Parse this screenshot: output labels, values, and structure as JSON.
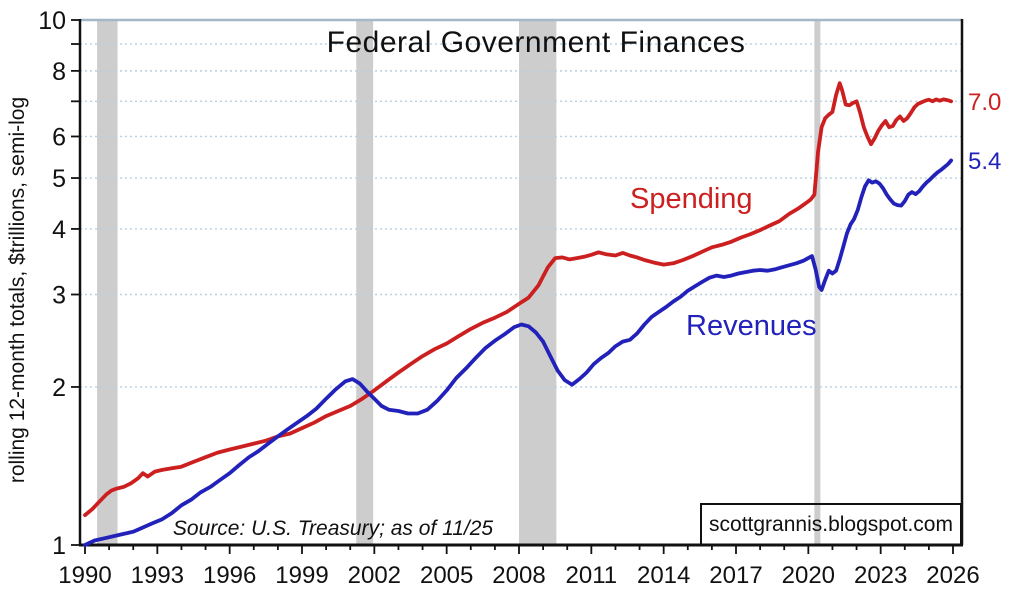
{
  "chart_data": {
    "type": "line",
    "title": "Federal Government Finances",
    "ylabel": "rolling 12-month totals, $trillions, semi-log",
    "source_note": "Source: U.S. Treasury; as of 11/25",
    "watermark": "scottgrannis.blogspot.com",
    "y_scale": "log10",
    "y_range": [
      1,
      10
    ],
    "y_ticks_labeled": [
      1,
      2,
      3,
      4,
      5,
      6,
      8,
      10
    ],
    "y_ticks_minor": [
      7,
      9
    ],
    "gridlines_at": [
      2,
      3,
      4,
      5,
      6,
      7,
      8,
      9
    ],
    "x_range": [
      1990,
      2026
    ],
    "x_ticks_labeled": [
      1990,
      1993,
      1996,
      1999,
      2002,
      2005,
      2008,
      2011,
      2014,
      2017,
      2020,
      2023,
      2026
    ],
    "x_minor_step": 1,
    "legend_position": "inline-labels",
    "grid": "horizontal-dotted",
    "recession_bands": [
      [
        1990.5,
        1991.35
      ],
      [
        2001.25,
        2001.95
      ],
      [
        2008.0,
        2009.55
      ],
      [
        2020.25,
        2020.5
      ]
    ],
    "palette": {
      "recession_band": "#cdcdcd",
      "gridline": "#b8d0e2",
      "frame_top": "#a3b8c8",
      "axis": "#111111"
    },
    "series": [
      {
        "name": "Spending",
        "color": "#cc2020",
        "end_label": "7.0",
        "points": [
          [
            1990.0,
            1.14
          ],
          [
            1990.3,
            1.17
          ],
          [
            1990.6,
            1.21
          ],
          [
            1990.9,
            1.25
          ],
          [
            1991.1,
            1.27
          ],
          [
            1991.3,
            1.28
          ],
          [
            1991.6,
            1.29
          ],
          [
            1991.9,
            1.31
          ],
          [
            1992.2,
            1.34
          ],
          [
            1992.4,
            1.37
          ],
          [
            1992.6,
            1.35
          ],
          [
            1992.9,
            1.38
          ],
          [
            1993.2,
            1.39
          ],
          [
            1993.6,
            1.4
          ],
          [
            1994.0,
            1.41
          ],
          [
            1994.5,
            1.44
          ],
          [
            1995.0,
            1.47
          ],
          [
            1995.5,
            1.5
          ],
          [
            1996.0,
            1.52
          ],
          [
            1996.5,
            1.54
          ],
          [
            1997.0,
            1.56
          ],
          [
            1997.5,
            1.58
          ],
          [
            1998.0,
            1.61
          ],
          [
            1998.5,
            1.63
          ],
          [
            1999.0,
            1.67
          ],
          [
            1999.5,
            1.71
          ],
          [
            2000.0,
            1.76
          ],
          [
            2000.5,
            1.8
          ],
          [
            2001.0,
            1.84
          ],
          [
            2001.5,
            1.9
          ],
          [
            2002.0,
            1.97
          ],
          [
            2002.5,
            2.05
          ],
          [
            2003.0,
            2.13
          ],
          [
            2003.5,
            2.21
          ],
          [
            2004.0,
            2.29
          ],
          [
            2004.5,
            2.36
          ],
          [
            2005.0,
            2.42
          ],
          [
            2005.5,
            2.5
          ],
          [
            2006.0,
            2.58
          ],
          [
            2006.5,
            2.65
          ],
          [
            2007.0,
            2.71
          ],
          [
            2007.5,
            2.78
          ],
          [
            2008.0,
            2.88
          ],
          [
            2008.4,
            2.96
          ],
          [
            2008.8,
            3.12
          ],
          [
            2009.2,
            3.38
          ],
          [
            2009.5,
            3.52
          ],
          [
            2009.8,
            3.53
          ],
          [
            2010.1,
            3.5
          ],
          [
            2010.4,
            3.52
          ],
          [
            2010.7,
            3.54
          ],
          [
            2011.0,
            3.57
          ],
          [
            2011.3,
            3.61
          ],
          [
            2011.6,
            3.58
          ],
          [
            2012.0,
            3.56
          ],
          [
            2012.3,
            3.6
          ],
          [
            2012.6,
            3.56
          ],
          [
            2012.9,
            3.53
          ],
          [
            2013.2,
            3.49
          ],
          [
            2013.6,
            3.45
          ],
          [
            2014.0,
            3.42
          ],
          [
            2014.4,
            3.44
          ],
          [
            2014.8,
            3.49
          ],
          [
            2015.2,
            3.55
          ],
          [
            2015.6,
            3.62
          ],
          [
            2016.0,
            3.69
          ],
          [
            2016.4,
            3.73
          ],
          [
            2016.8,
            3.78
          ],
          [
            2017.2,
            3.85
          ],
          [
            2017.6,
            3.91
          ],
          [
            2018.0,
            3.98
          ],
          [
            2018.4,
            4.06
          ],
          [
            2018.8,
            4.14
          ],
          [
            2019.2,
            4.27
          ],
          [
            2019.6,
            4.38
          ],
          [
            2019.9,
            4.48
          ],
          [
            2020.1,
            4.55
          ],
          [
            2020.25,
            4.65
          ],
          [
            2020.4,
            5.6
          ],
          [
            2020.55,
            6.25
          ],
          [
            2020.7,
            6.5
          ],
          [
            2020.85,
            6.6
          ],
          [
            2021.0,
            6.68
          ],
          [
            2021.15,
            7.2
          ],
          [
            2021.3,
            7.58
          ],
          [
            2021.4,
            7.35
          ],
          [
            2021.55,
            6.9
          ],
          [
            2021.7,
            6.88
          ],
          [
            2021.85,
            6.95
          ],
          [
            2022.0,
            7.0
          ],
          [
            2022.15,
            6.65
          ],
          [
            2022.3,
            6.25
          ],
          [
            2022.45,
            6.0
          ],
          [
            2022.6,
            5.8
          ],
          [
            2022.75,
            5.95
          ],
          [
            2022.9,
            6.15
          ],
          [
            2023.05,
            6.3
          ],
          [
            2023.2,
            6.42
          ],
          [
            2023.35,
            6.25
          ],
          [
            2023.5,
            6.28
          ],
          [
            2023.65,
            6.45
          ],
          [
            2023.8,
            6.55
          ],
          [
            2023.95,
            6.42
          ],
          [
            2024.1,
            6.5
          ],
          [
            2024.25,
            6.65
          ],
          [
            2024.4,
            6.82
          ],
          [
            2024.55,
            6.92
          ],
          [
            2024.7,
            6.97
          ],
          [
            2024.85,
            7.02
          ],
          [
            2025.0,
            7.05
          ],
          [
            2025.15,
            7.0
          ],
          [
            2025.3,
            7.06
          ],
          [
            2025.45,
            7.02
          ],
          [
            2025.6,
            7.06
          ],
          [
            2025.75,
            7.04
          ],
          [
            2025.92,
            7.0
          ]
        ]
      },
      {
        "name": "Revenues",
        "color": "#2222bb",
        "end_label": "5.4",
        "points": [
          [
            1990.0,
            1.0
          ],
          [
            1990.4,
            1.02
          ],
          [
            1990.8,
            1.03
          ],
          [
            1991.2,
            1.04
          ],
          [
            1991.6,
            1.05
          ],
          [
            1992.0,
            1.06
          ],
          [
            1992.4,
            1.08
          ],
          [
            1992.8,
            1.1
          ],
          [
            1993.2,
            1.12
          ],
          [
            1993.6,
            1.15
          ],
          [
            1994.0,
            1.19
          ],
          [
            1994.4,
            1.22
          ],
          [
            1994.8,
            1.26
          ],
          [
            1995.2,
            1.29
          ],
          [
            1995.6,
            1.33
          ],
          [
            1996.0,
            1.37
          ],
          [
            1996.4,
            1.42
          ],
          [
            1996.8,
            1.47
          ],
          [
            1997.2,
            1.51
          ],
          [
            1997.6,
            1.56
          ],
          [
            1998.0,
            1.61
          ],
          [
            1998.4,
            1.66
          ],
          [
            1998.8,
            1.71
          ],
          [
            1999.2,
            1.76
          ],
          [
            1999.6,
            1.82
          ],
          [
            2000.0,
            1.9
          ],
          [
            2000.4,
            1.98
          ],
          [
            2000.8,
            2.05
          ],
          [
            2001.1,
            2.07
          ],
          [
            2001.4,
            2.03
          ],
          [
            2001.7,
            1.96
          ],
          [
            2002.0,
            1.9
          ],
          [
            2002.3,
            1.84
          ],
          [
            2002.6,
            1.81
          ],
          [
            2003.0,
            1.8
          ],
          [
            2003.4,
            1.78
          ],
          [
            2003.8,
            1.78
          ],
          [
            2004.2,
            1.81
          ],
          [
            2004.6,
            1.88
          ],
          [
            2005.0,
            1.97
          ],
          [
            2005.4,
            2.08
          ],
          [
            2005.8,
            2.17
          ],
          [
            2006.2,
            2.27
          ],
          [
            2006.6,
            2.37
          ],
          [
            2007.0,
            2.45
          ],
          [
            2007.4,
            2.52
          ],
          [
            2007.8,
            2.6
          ],
          [
            2008.1,
            2.63
          ],
          [
            2008.4,
            2.61
          ],
          [
            2008.7,
            2.54
          ],
          [
            2009.0,
            2.44
          ],
          [
            2009.3,
            2.29
          ],
          [
            2009.6,
            2.15
          ],
          [
            2009.9,
            2.06
          ],
          [
            2010.2,
            2.02
          ],
          [
            2010.5,
            2.07
          ],
          [
            2010.8,
            2.13
          ],
          [
            2011.1,
            2.21
          ],
          [
            2011.4,
            2.27
          ],
          [
            2011.7,
            2.32
          ],
          [
            2012.0,
            2.39
          ],
          [
            2012.3,
            2.44
          ],
          [
            2012.6,
            2.46
          ],
          [
            2012.9,
            2.53
          ],
          [
            2013.2,
            2.63
          ],
          [
            2013.5,
            2.72
          ],
          [
            2013.8,
            2.78
          ],
          [
            2014.1,
            2.84
          ],
          [
            2014.4,
            2.91
          ],
          [
            2014.7,
            2.97
          ],
          [
            2015.0,
            3.05
          ],
          [
            2015.3,
            3.11
          ],
          [
            2015.6,
            3.17
          ],
          [
            2015.9,
            3.23
          ],
          [
            2016.2,
            3.26
          ],
          [
            2016.5,
            3.24
          ],
          [
            2016.8,
            3.26
          ],
          [
            2017.1,
            3.29
          ],
          [
            2017.4,
            3.31
          ],
          [
            2017.7,
            3.33
          ],
          [
            2018.0,
            3.34
          ],
          [
            2018.3,
            3.33
          ],
          [
            2018.6,
            3.35
          ],
          [
            2018.9,
            3.38
          ],
          [
            2019.2,
            3.41
          ],
          [
            2019.5,
            3.44
          ],
          [
            2019.8,
            3.48
          ],
          [
            2020.0,
            3.52
          ],
          [
            2020.15,
            3.55
          ],
          [
            2020.3,
            3.35
          ],
          [
            2020.45,
            3.1
          ],
          [
            2020.55,
            3.06
          ],
          [
            2020.7,
            3.2
          ],
          [
            2020.85,
            3.33
          ],
          [
            2021.0,
            3.29
          ],
          [
            2021.15,
            3.33
          ],
          [
            2021.3,
            3.5
          ],
          [
            2021.45,
            3.7
          ],
          [
            2021.6,
            3.92
          ],
          [
            2021.75,
            4.08
          ],
          [
            2021.9,
            4.18
          ],
          [
            2022.05,
            4.35
          ],
          [
            2022.2,
            4.6
          ],
          [
            2022.35,
            4.82
          ],
          [
            2022.5,
            4.95
          ],
          [
            2022.65,
            4.9
          ],
          [
            2022.8,
            4.93
          ],
          [
            2022.95,
            4.88
          ],
          [
            2023.1,
            4.78
          ],
          [
            2023.25,
            4.65
          ],
          [
            2023.4,
            4.55
          ],
          [
            2023.55,
            4.47
          ],
          [
            2023.7,
            4.44
          ],
          [
            2023.85,
            4.43
          ],
          [
            2024.0,
            4.52
          ],
          [
            2024.15,
            4.65
          ],
          [
            2024.3,
            4.7
          ],
          [
            2024.45,
            4.66
          ],
          [
            2024.6,
            4.72
          ],
          [
            2024.75,
            4.82
          ],
          [
            2024.9,
            4.9
          ],
          [
            2025.05,
            4.97
          ],
          [
            2025.2,
            5.05
          ],
          [
            2025.35,
            5.12
          ],
          [
            2025.5,
            5.18
          ],
          [
            2025.65,
            5.25
          ],
          [
            2025.8,
            5.32
          ],
          [
            2025.92,
            5.4
          ]
        ]
      }
    ]
  }
}
